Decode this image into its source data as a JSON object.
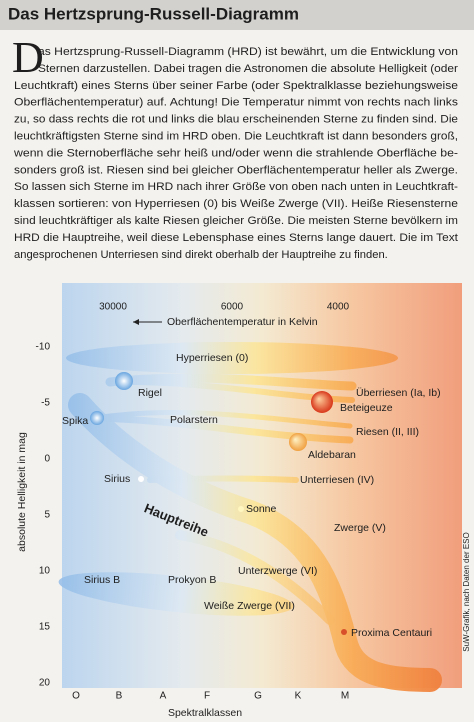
{
  "header": {
    "title": "Das Hertzsprung-Russell-Diagramm"
  },
  "text": {
    "dropcap": "D",
    "lines": [
      "as Hertzsprung-Russell-Diagramm (HRD) ist bewährt, um die Entwicklung von",
      "Sternen darzustellen. Dabei tragen die Astronomen die absolute Helligkeit (oder",
      "Leuchtkraft) eines Sterns über seiner Farbe (oder Spektralklasse beziehungsweise",
      "Oberflächentemperatur) auf. Achtung! Die Temperatur nimmt von rechts nach links",
      "zu, so dass rechts die rot und links die blau erscheinenden Sterne zu finden sind. Die",
      "leuchtkräftigsten Sterne sind im HRD oben. Die Leuchtkraft ist dann besonders groß,",
      "wenn die Sternoberfläche sehr heiß und/oder wenn die strahlende Oberfläche be-",
      "sonders groß ist. Riesen sind bei gleicher Oberflächentemperatur heller als Zwerge.",
      "So lassen sich Sterne im HRD nach ihrer Größe von oben nach unten in Leuchtkraft-",
      "klassen sortieren: von Hyperriesen (0) bis Weiße Zwerge (VII). Heiße Riesensterne",
      "sind leuchtkräftiger als kalte Riesen gleicher Größe. Die meisten Sterne bevölkern im",
      "HRD die Hauptreihe, weil diese Lebensphase eines Sterns lange dauert. Die im Text",
      "angesprochenen Unterriesen sind direkt oberhalb der Hauptreihe zu finden."
    ]
  },
  "diagram": {
    "temperature_label": "Oberflächentemperatur in Kelvin",
    "temperature_ticks": [
      "30000",
      "6000",
      "4000"
    ],
    "magnitude_ticks": [
      "-10",
      "-5",
      "0",
      "5",
      "10",
      "15",
      "20"
    ],
    "y_axis_label": "absolute Helligkeit in mag",
    "spectral_classes": [
      "O",
      "B",
      "A",
      "F",
      "G",
      "K",
      "M"
    ],
    "x_axis_label": "Spektralklassen",
    "credit": "SuW-Grafik, nach Daten der ESO",
    "main_sequence": "Hauptreihe",
    "regions": [
      "Hyperriesen (0)",
      "Überriesen (Ia, Ib)",
      "Riesen (II, III)",
      "Unterriesen (IV)",
      "Zwerge (V)",
      "Unterzwerge (VI)",
      "Weiße Zwerge (VII)"
    ],
    "stars": [
      "Rigel",
      "Spika",
      "Polarstern",
      "Beteigeuze",
      "Aldebaran",
      "Sirius",
      "Sonne",
      "Sirius B",
      "Prokyon B",
      "Proxima Centauri"
    ]
  }
}
